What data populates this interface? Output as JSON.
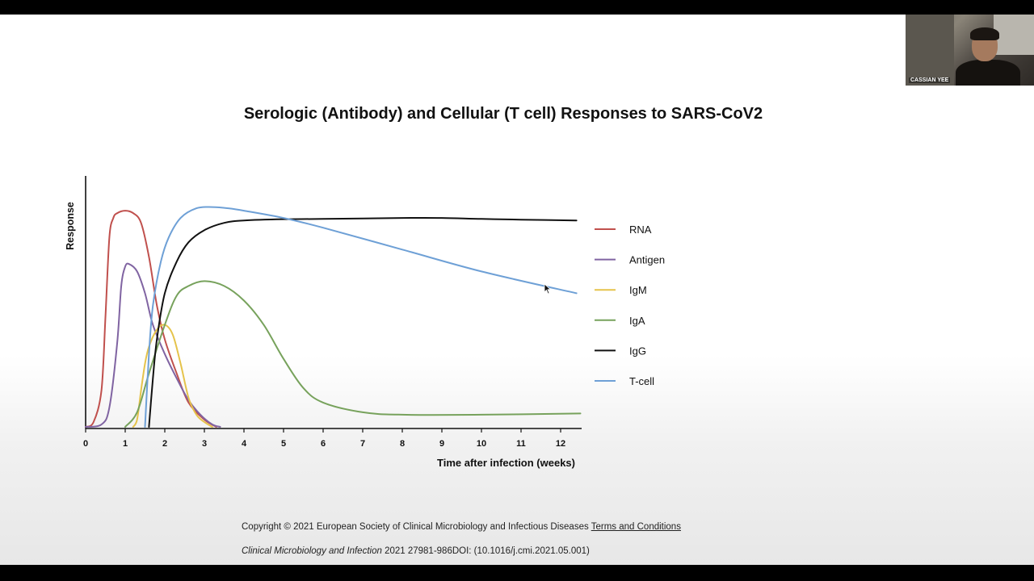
{
  "slide": {
    "title": "Serologic (Antibody) and Cellular (T cell) Responses to SARS-CoV2",
    "copyright_text": "Copyright © 2021 European Society of Clinical Microbiology and Infectious Diseases",
    "copyright_link": "Terms and Conditions",
    "citation_journal": "Clinical Microbiology and Infection",
    "citation_rest": " 2021 27981-986DOI: (10.1016/j.cmi.2021.05.001)"
  },
  "webcam": {
    "name": "CASSIAN YEE"
  },
  "chart_data": {
    "type": "line",
    "xlabel": "Time after infection (weeks)",
    "ylabel": "Response",
    "xlim": [
      0,
      12.5
    ],
    "ylim": [
      0,
      1
    ],
    "xticks": [
      0,
      1,
      2,
      3,
      4,
      5,
      6,
      7,
      8,
      9,
      10,
      11,
      12
    ],
    "legend_position": "right",
    "series": [
      {
        "name": "RNA",
        "color": "#c0504d",
        "x": [
          0,
          0.2,
          0.4,
          0.5,
          0.6,
          0.7,
          0.8,
          1.0,
          1.2,
          1.4,
          1.6,
          1.8,
          2.0,
          2.3,
          2.6,
          3.0,
          3.3
        ],
        "y": [
          0,
          0.02,
          0.15,
          0.45,
          0.78,
          0.86,
          0.88,
          0.89,
          0.88,
          0.84,
          0.7,
          0.5,
          0.36,
          0.22,
          0.1,
          0.03,
          0
        ]
      },
      {
        "name": "Antigen",
        "color": "#8064a2",
        "x": [
          0,
          0.4,
          0.6,
          0.8,
          0.9,
          1.0,
          1.1,
          1.3,
          1.5,
          1.7,
          2.0,
          2.3,
          2.6,
          2.9,
          3.2,
          3.4
        ],
        "y": [
          0,
          0.01,
          0.08,
          0.35,
          0.58,
          0.66,
          0.67,
          0.64,
          0.55,
          0.42,
          0.3,
          0.2,
          0.11,
          0.05,
          0.01,
          0
        ]
      },
      {
        "name": "IgM",
        "color": "#e5c34b",
        "x": [
          1.2,
          1.3,
          1.4,
          1.5,
          1.6,
          1.8,
          2.0,
          2.2,
          2.4,
          2.6,
          2.8,
          3.0,
          3.2
        ],
        "y": [
          0,
          0.03,
          0.15,
          0.26,
          0.33,
          0.4,
          0.42,
          0.38,
          0.26,
          0.12,
          0.05,
          0.02,
          0
        ]
      },
      {
        "name": "IgA",
        "color": "#77a25c",
        "x": [
          1.0,
          1.3,
          1.6,
          2.0,
          2.3,
          2.6,
          3.0,
          3.5,
          4.0,
          4.5,
          5.0,
          5.5,
          6.0,
          7.0,
          8.0,
          10.0,
          12.5
        ],
        "y": [
          0,
          0.06,
          0.22,
          0.42,
          0.54,
          0.58,
          0.6,
          0.58,
          0.52,
          0.42,
          0.28,
          0.16,
          0.1,
          0.06,
          0.05,
          0.05,
          0.055
        ]
      },
      {
        "name": "IgG",
        "color": "#111111",
        "x": [
          1.6,
          1.7,
          1.8,
          2.0,
          2.3,
          2.6,
          3.0,
          3.5,
          4.0,
          5.0,
          6.0,
          8.0,
          9.0,
          10.0,
          11.0,
          12.4
        ],
        "y": [
          0,
          0.2,
          0.36,
          0.55,
          0.68,
          0.76,
          0.81,
          0.84,
          0.85,
          0.855,
          0.856,
          0.86,
          0.86,
          0.856,
          0.853,
          0.85
        ]
      },
      {
        "name": "T-cell",
        "color": "#6ea0d6",
        "x": [
          1.5,
          1.6,
          1.7,
          1.9,
          2.1,
          2.4,
          2.8,
          3.2,
          3.6,
          4.0,
          5.0,
          6.0,
          8.0,
          10.0,
          12.4
        ],
        "y": [
          0,
          0.3,
          0.5,
          0.68,
          0.78,
          0.86,
          0.9,
          0.905,
          0.9,
          0.89,
          0.86,
          0.82,
          0.73,
          0.64,
          0.55
        ]
      }
    ]
  }
}
